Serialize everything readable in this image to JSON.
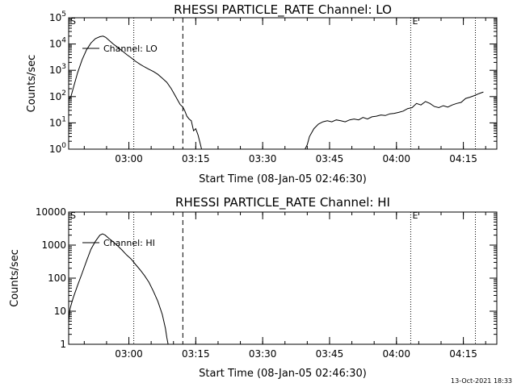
{
  "chart_data": [
    {
      "type": "line",
      "title": "RHESSI PARTICLE_RATE Channel: LO",
      "xlabel": "Start Time (08-Jan-05 02:46:30)",
      "ylabel": "Counts/sec",
      "y_scale": "log",
      "ylim": [
        1,
        100000
      ],
      "y_ticks": [
        {
          "value": 1,
          "base": "10",
          "exp": "0"
        },
        {
          "value": 10,
          "base": "10",
          "exp": "1"
        },
        {
          "value": 100,
          "base": "10",
          "exp": "2"
        },
        {
          "value": 1000,
          "base": "10",
          "exp": "3"
        },
        {
          "value": 10000,
          "base": "10",
          "exp": "4"
        },
        {
          "value": 100000,
          "base": "10",
          "exp": "5"
        }
      ],
      "xlim_minutes": [
        0,
        96
      ],
      "x_ticks": [
        {
          "minute": 13.5,
          "label": "03:00"
        },
        {
          "minute": 28.5,
          "label": "03:15"
        },
        {
          "minute": 43.5,
          "label": "03:30"
        },
        {
          "minute": 58.5,
          "label": "03:45"
        },
        {
          "minute": 73.5,
          "label": "04:00"
        },
        {
          "minute": 88.5,
          "label": "04:15"
        }
      ],
      "markers": [
        {
          "minute": 0,
          "label": "S"
        },
        {
          "minute": 76.7,
          "label": "E"
        }
      ],
      "vlines_dotted_minutes": [
        14.6,
        76.7,
        91.2
      ],
      "vlines_dashed_minutes": [
        25.6
      ],
      "legend": "Channel: LO",
      "series": [
        {
          "name": "Channel: LO",
          "segments": [
            [
              [
                0,
                80
              ],
              [
                0.5,
                100
              ],
              [
                1,
                200
              ],
              [
                2,
                800
              ],
              [
                3,
                2500
              ],
              [
                4,
                6000
              ],
              [
                5,
                11000
              ],
              [
                6,
                16000
              ],
              [
                7,
                19000
              ],
              [
                7.7,
                20000
              ],
              [
                8.3,
                18000
              ],
              [
                9,
                14000
              ],
              [
                10,
                10000
              ],
              [
                11,
                7500
              ],
              [
                12,
                5500
              ],
              [
                13,
                4000
              ],
              [
                14,
                3000
              ],
              [
                15,
                2200
              ],
              [
                16,
                1700
              ],
              [
                17,
                1350
              ],
              [
                18,
                1100
              ],
              [
                19,
                900
              ],
              [
                20,
                700
              ],
              [
                21,
                500
              ],
              [
                22,
                350
              ],
              [
                23,
                200
              ],
              [
                24,
                100
              ],
              [
                25,
                50
              ],
              [
                25.6,
                40
              ],
              [
                26,
                30
              ],
              [
                26.5,
                18
              ],
              [
                27,
                14
              ],
              [
                27.5,
                12
              ],
              [
                28,
                5
              ],
              [
                28.5,
                6
              ],
              [
                29,
                3.5
              ],
              [
                29.5,
                1.6
              ],
              [
                29.8,
                1
              ]
            ],
            [
              [
                53,
                1
              ],
              [
                53.5,
                1.5
              ],
              [
                54,
                3
              ],
              [
                55,
                6
              ],
              [
                56,
                9
              ],
              [
                57,
                11
              ],
              [
                58,
                12
              ],
              [
                59,
                11
              ],
              [
                60,
                13
              ],
              [
                61,
                12
              ],
              [
                62,
                11
              ],
              [
                63,
                13
              ],
              [
                64,
                14
              ],
              [
                65,
                13
              ],
              [
                66,
                16
              ],
              [
                67,
                14
              ],
              [
                68,
                17
              ],
              [
                69,
                18
              ],
              [
                70,
                20
              ],
              [
                71,
                19
              ],
              [
                72,
                22
              ],
              [
                73,
                23
              ],
              [
                74,
                25
              ],
              [
                75,
                28
              ],
              [
                76,
                35
              ],
              [
                77,
                38
              ],
              [
                78,
                55
              ],
              [
                79,
                48
              ],
              [
                80,
                65
              ],
              [
                81,
                55
              ],
              [
                82,
                42
              ],
              [
                83,
                38
              ],
              [
                84,
                45
              ],
              [
                85,
                40
              ],
              [
                86,
                48
              ],
              [
                87,
                55
              ],
              [
                88,
                60
              ],
              [
                89,
                85
              ],
              [
                90,
                95
              ],
              [
                91,
                110
              ],
              [
                92,
                130
              ],
              [
                93,
                150
              ]
            ]
          ]
        }
      ]
    },
    {
      "type": "line",
      "title": "RHESSI PARTICLE_RATE Channel: HI",
      "xlabel": "Start Time (08-Jan-05 02:46:30)",
      "ylabel": "Counts/sec",
      "y_scale": "log",
      "ylim": [
        1,
        10000
      ],
      "y_ticks": [
        {
          "value": 1,
          "label": "1"
        },
        {
          "value": 10,
          "label": "10"
        },
        {
          "value": 100,
          "label": "100"
        },
        {
          "value": 1000,
          "label": "1000"
        },
        {
          "value": 10000,
          "label": "10000"
        }
      ],
      "xlim_minutes": [
        0,
        96
      ],
      "x_ticks": [
        {
          "minute": 13.5,
          "label": "03:00"
        },
        {
          "minute": 28.5,
          "label": "03:15"
        },
        {
          "minute": 43.5,
          "label": "03:30"
        },
        {
          "minute": 58.5,
          "label": "03:45"
        },
        {
          "minute": 73.5,
          "label": "04:00"
        },
        {
          "minute": 88.5,
          "label": "04:15"
        }
      ],
      "markers": [
        {
          "minute": 0,
          "label": "S"
        },
        {
          "minute": 76.7,
          "label": "E"
        }
      ],
      "vlines_dotted_minutes": [
        14.6,
        76.7,
        91.2
      ],
      "vlines_dashed_minutes": [
        25.6
      ],
      "legend": "Channel: HI",
      "series": [
        {
          "name": "Channel: HI",
          "segments": [
            [
              [
                0,
                5
              ],
              [
                0.3,
                12
              ],
              [
                1,
                25
              ],
              [
                2,
                60
              ],
              [
                3,
                140
              ],
              [
                4,
                330
              ],
              [
                5,
                750
              ],
              [
                6,
                1300
              ],
              [
                7,
                2000
              ],
              [
                7.6,
                2200
              ],
              [
                8.2,
                2000
              ],
              [
                9,
                1600
              ],
              [
                10,
                1250
              ],
              [
                11,
                950
              ],
              [
                12,
                700
              ],
              [
                13,
                500
              ],
              [
                14,
                380
              ],
              [
                15,
                260
              ],
              [
                16,
                180
              ],
              [
                17,
                120
              ],
              [
                18,
                75
              ],
              [
                19,
                40
              ],
              [
                20,
                20
              ],
              [
                21,
                8
              ],
              [
                21.7,
                3
              ],
              [
                22,
                1.6
              ],
              [
                22.3,
                1
              ]
            ]
          ]
        }
      ]
    }
  ],
  "timestamp": "13-Oct-2021 18:33"
}
